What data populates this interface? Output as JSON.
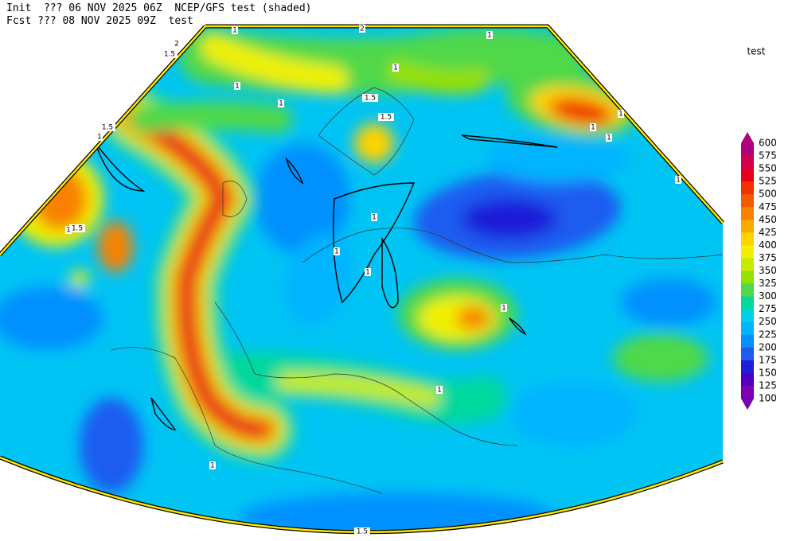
{
  "header": {
    "line1": "Init  ??? 06 NOV 2025 06Z  NCEP/GFS test (shaded)",
    "line2": "Fcst ??? 08 NOV 2025 09Z  test"
  },
  "legend": {
    "title": "test",
    "labels": [
      600,
      575,
      550,
      525,
      500,
      475,
      450,
      425,
      400,
      375,
      350,
      325,
      300,
      275,
      250,
      225,
      200,
      175,
      150,
      125,
      100
    ],
    "colors": [
      "#b0007c",
      "#d2004a",
      "#e6001e",
      "#f03200",
      "#f55a00",
      "#f88200",
      "#fbaa00",
      "#ffd200",
      "#f0f000",
      "#c8ec00",
      "#96e000",
      "#50d84a",
      "#00d89c",
      "#00d2e6",
      "#00b4ff",
      "#0090ff",
      "#1e5cf0",
      "#1e1ed8",
      "#5000c0",
      "#7c00b0"
    ]
  },
  "contour_labels": [
    "1",
    "2",
    "1",
    "1",
    "1",
    "1",
    "1.5",
    "1.5",
    "1.5",
    "1",
    "1.5",
    "1",
    "1",
    "1",
    "1",
    "1",
    "1",
    "1",
    "1.5",
    "1",
    "1",
    "1",
    "1",
    "1.5",
    "2"
  ]
}
